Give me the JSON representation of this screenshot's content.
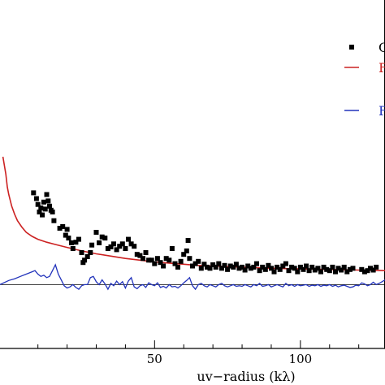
{
  "chart_data": {
    "type": "scatter",
    "xlabel": "uv−radius (kλ)",
    "x_ticks": [
      50,
      100
    ],
    "xlim": [
      -3,
      129
    ],
    "ylim": [
      -1.1,
      4.9
    ],
    "zero_line": true,
    "legend_position": "top-right",
    "legend": [
      {
        "label": "O",
        "marker": "square",
        "color": "#000000"
      },
      {
        "label": "F",
        "marker": "line",
        "color": "#cc2222"
      },
      {
        "label": "F",
        "marker": "line",
        "color": "#2233bb"
      }
    ],
    "points": [
      [
        8.5,
        1.58
      ],
      [
        9.5,
        1.48
      ],
      [
        10.0,
        1.38
      ],
      [
        10.5,
        1.25
      ],
      [
        11.0,
        1.32
      ],
      [
        11.5,
        1.2
      ],
      [
        12.0,
        1.42
      ],
      [
        12.5,
        1.3
      ],
      [
        13.0,
        1.55
      ],
      [
        13.5,
        1.44
      ],
      [
        14.0,
        1.35
      ],
      [
        14.5,
        1.28
      ],
      [
        15.0,
        1.25
      ],
      [
        15.5,
        1.1
      ],
      [
        17.5,
        0.97
      ],
      [
        18.5,
        1.0
      ],
      [
        19.5,
        0.85
      ],
      [
        20.0,
        0.95
      ],
      [
        20.5,
        0.8
      ],
      [
        21.5,
        0.72
      ],
      [
        22.0,
        0.62
      ],
      [
        23.0,
        0.73
      ],
      [
        24.0,
        0.78
      ],
      [
        25.0,
        0.55
      ],
      [
        25.5,
        0.38
      ],
      [
        26.0,
        0.42
      ],
      [
        27.0,
        0.48
      ],
      [
        28.0,
        0.55
      ],
      [
        28.5,
        0.68
      ],
      [
        30.0,
        0.9
      ],
      [
        31.0,
        0.72
      ],
      [
        32.0,
        0.82
      ],
      [
        33.0,
        0.8
      ],
      [
        34.0,
        0.62
      ],
      [
        35.0,
        0.65
      ],
      [
        36.0,
        0.7
      ],
      [
        37.0,
        0.6
      ],
      [
        38.0,
        0.66
      ],
      [
        39.0,
        0.7
      ],
      [
        40.0,
        0.62
      ],
      [
        41.0,
        0.78
      ],
      [
        42.0,
        0.7
      ],
      [
        43.0,
        0.66
      ],
      [
        44.0,
        0.52
      ],
      [
        45.0,
        0.5
      ],
      [
        46.0,
        0.45
      ],
      [
        47.0,
        0.55
      ],
      [
        48.0,
        0.42
      ],
      [
        49.0,
        0.42
      ],
      [
        50.0,
        0.36
      ],
      [
        51.0,
        0.45
      ],
      [
        52.0,
        0.38
      ],
      [
        53.0,
        0.32
      ],
      [
        54.0,
        0.45
      ],
      [
        55.0,
        0.42
      ],
      [
        56.0,
        0.62
      ],
      [
        57.0,
        0.36
      ],
      [
        58.0,
        0.3
      ],
      [
        59.0,
        0.4
      ],
      [
        60.0,
        0.52
      ],
      [
        61.0,
        0.58
      ],
      [
        61.5,
        0.76
      ],
      [
        62.0,
        0.45
      ],
      [
        63.0,
        0.32
      ],
      [
        64.0,
        0.36
      ],
      [
        65.0,
        0.4
      ],
      [
        66.0,
        0.28
      ],
      [
        67.0,
        0.35
      ],
      [
        68.0,
        0.3
      ],
      [
        69.0,
        0.28
      ],
      [
        70.0,
        0.34
      ],
      [
        71.0,
        0.3
      ],
      [
        72.0,
        0.36
      ],
      [
        73.0,
        0.28
      ],
      [
        74.0,
        0.33
      ],
      [
        75.0,
        0.26
      ],
      [
        76.0,
        0.32
      ],
      [
        77.0,
        0.3
      ],
      [
        78.0,
        0.35
      ],
      [
        79.0,
        0.28
      ],
      [
        80.0,
        0.3
      ],
      [
        81.0,
        0.25
      ],
      [
        82.0,
        0.32
      ],
      [
        83.0,
        0.28
      ],
      [
        84.0,
        0.3
      ],
      [
        85.0,
        0.36
      ],
      [
        86.0,
        0.24
      ],
      [
        87.0,
        0.3
      ],
      [
        88.0,
        0.26
      ],
      [
        89.0,
        0.33
      ],
      [
        90.0,
        0.28
      ],
      [
        91.0,
        0.22
      ],
      [
        92.0,
        0.3
      ],
      [
        93.0,
        0.26
      ],
      [
        94.0,
        0.32
      ],
      [
        95.0,
        0.36
      ],
      [
        96.0,
        0.24
      ],
      [
        97.0,
        0.3
      ],
      [
        98.0,
        0.28
      ],
      [
        99.0,
        0.22
      ],
      [
        100.0,
        0.3
      ],
      [
        101.0,
        0.26
      ],
      [
        102.0,
        0.32
      ],
      [
        103.0,
        0.24
      ],
      [
        104.0,
        0.3
      ],
      [
        105.0,
        0.25
      ],
      [
        106.0,
        0.28
      ],
      [
        107.0,
        0.22
      ],
      [
        108.0,
        0.3
      ],
      [
        109.0,
        0.26
      ],
      [
        110.0,
        0.24
      ],
      [
        111.0,
        0.3
      ],
      [
        112.0,
        0.22
      ],
      [
        113.0,
        0.28
      ],
      [
        114.0,
        0.25
      ],
      [
        115.0,
        0.3
      ],
      [
        116.0,
        0.22
      ],
      [
        117.0,
        0.26
      ],
      [
        118.0,
        0.28
      ],
      [
        121.0,
        0.26
      ],
      [
        122.0,
        0.22
      ],
      [
        123.0,
        0.24
      ],
      [
        124.0,
        0.28
      ],
      [
        125.0,
        0.25
      ],
      [
        126.0,
        0.3
      ]
    ],
    "model_curve": [
      [
        -2.0,
        2.2
      ],
      [
        -1.5,
        2.05
      ],
      [
        -1.0,
        1.9
      ],
      [
        -0.5,
        1.68
      ],
      [
        0.0,
        1.55
      ],
      [
        1.0,
        1.35
      ],
      [
        2.0,
        1.21
      ],
      [
        3.0,
        1.1
      ],
      [
        4.5,
        0.99
      ],
      [
        6.0,
        0.9
      ],
      [
        8.0,
        0.83
      ],
      [
        10.0,
        0.78
      ],
      [
        13.0,
        0.73
      ],
      [
        16.0,
        0.69
      ],
      [
        20.0,
        0.64
      ],
      [
        25.0,
        0.58
      ],
      [
        30.0,
        0.53
      ],
      [
        35.0,
        0.49
      ],
      [
        40.0,
        0.45
      ],
      [
        45.0,
        0.42
      ],
      [
        50.0,
        0.39
      ],
      [
        55.0,
        0.37
      ],
      [
        60.0,
        0.35
      ],
      [
        65.0,
        0.33
      ],
      [
        70.0,
        0.32
      ],
      [
        75.0,
        0.31
      ],
      [
        80.0,
        0.3
      ],
      [
        85.0,
        0.29
      ],
      [
        90.0,
        0.28
      ],
      [
        95.0,
        0.275
      ],
      [
        100.0,
        0.27
      ],
      [
        105.0,
        0.265
      ],
      [
        110.0,
        0.26
      ],
      [
        115.0,
        0.255
      ],
      [
        120.0,
        0.25
      ],
      [
        125.0,
        0.245
      ],
      [
        129.0,
        0.24
      ]
    ],
    "residuals": [
      [
        -3.0,
        0.0
      ],
      [
        0.0,
        0.07
      ],
      [
        2.0,
        0.1
      ],
      [
        4.0,
        0.14
      ],
      [
        6.0,
        0.18
      ],
      [
        8.0,
        0.22
      ],
      [
        9.0,
        0.24
      ],
      [
        10.0,
        0.18
      ],
      [
        11.0,
        0.14
      ],
      [
        12.0,
        0.16
      ],
      [
        13.0,
        0.12
      ],
      [
        14.0,
        0.14
      ],
      [
        15.0,
        0.24
      ],
      [
        16.0,
        0.34
      ],
      [
        17.0,
        0.18
      ],
      [
        18.0,
        0.08
      ],
      [
        19.0,
        -0.02
      ],
      [
        20.0,
        -0.06
      ],
      [
        21.0,
        -0.04
      ],
      [
        22.0,
        0.0
      ],
      [
        23.0,
        -0.05
      ],
      [
        24.0,
        -0.08
      ],
      [
        25.0,
        -0.02
      ],
      [
        26.0,
        0.0
      ],
      [
        27.0,
        0.0
      ],
      [
        28.0,
        0.12
      ],
      [
        29.0,
        0.14
      ],
      [
        30.0,
        0.05
      ],
      [
        31.0,
        0.0
      ],
      [
        32.0,
        0.08
      ],
      [
        33.0,
        0.01
      ],
      [
        34.0,
        -0.08
      ],
      [
        35.0,
        0.02
      ],
      [
        36.0,
        -0.02
      ],
      [
        37.0,
        0.06
      ],
      [
        38.0,
        0.0
      ],
      [
        39.0,
        0.05
      ],
      [
        40.0,
        -0.06
      ],
      [
        41.0,
        0.06
      ],
      [
        42.0,
        0.12
      ],
      [
        43.0,
        -0.04
      ],
      [
        44.0,
        -0.07
      ],
      [
        45.0,
        -0.02
      ],
      [
        46.0,
        0.0
      ],
      [
        47.0,
        -0.05
      ],
      [
        48.0,
        0.03
      ],
      [
        49.0,
        0.0
      ],
      [
        50.0,
        -0.02
      ],
      [
        51.0,
        0.03
      ],
      [
        52.0,
        -0.05
      ],
      [
        53.0,
        -0.03
      ],
      [
        54.0,
        -0.06
      ],
      [
        55.0,
        0.0
      ],
      [
        56.0,
        -0.04
      ],
      [
        57.0,
        -0.03
      ],
      [
        58.0,
        -0.06
      ],
      [
        59.0,
        -0.02
      ],
      [
        60.0,
        0.03
      ],
      [
        61.0,
        0.07
      ],
      [
        62.0,
        0.12
      ],
      [
        63.0,
        -0.02
      ],
      [
        64.0,
        -0.08
      ],
      [
        65.0,
        0.0
      ],
      [
        66.0,
        0.02
      ],
      [
        67.0,
        -0.02
      ],
      [
        68.0,
        -0.04
      ],
      [
        69.0,
        0.0
      ],
      [
        70.0,
        -0.02
      ],
      [
        71.0,
        -0.04
      ],
      [
        72.0,
        0.0
      ],
      [
        73.0,
        0.02
      ],
      [
        74.0,
        -0.02
      ],
      [
        75.0,
        -0.04
      ],
      [
        76.0,
        -0.02
      ],
      [
        77.0,
        0.0
      ],
      [
        78.0,
        -0.03
      ],
      [
        79.0,
        -0.02
      ],
      [
        80.0,
        -0.03
      ],
      [
        81.0,
        0.0
      ],
      [
        82.0,
        -0.02
      ],
      [
        83.0,
        -0.04
      ],
      [
        84.0,
        0.0
      ],
      [
        85.0,
        -0.02
      ],
      [
        86.0,
        0.02
      ],
      [
        87.0,
        -0.03
      ],
      [
        88.0,
        -0.02
      ],
      [
        89.0,
        0.0
      ],
      [
        90.0,
        -0.04
      ],
      [
        91.0,
        -0.02
      ],
      [
        92.0,
        0.0
      ],
      [
        93.0,
        -0.02
      ],
      [
        94.0,
        -0.04
      ],
      [
        95.0,
        0.02
      ],
      [
        96.0,
        -0.02
      ],
      [
        97.0,
        0.0
      ],
      [
        98.0,
        -0.03
      ],
      [
        99.0,
        0.0
      ],
      [
        100.0,
        -0.02
      ],
      [
        101.0,
        -0.01
      ],
      [
        102.0,
        0.0
      ],
      [
        103.0,
        -0.03
      ],
      [
        104.0,
        -0.01
      ],
      [
        105.0,
        -0.02
      ],
      [
        106.0,
        0.0
      ],
      [
        107.0,
        -0.03
      ],
      [
        108.0,
        -0.01
      ],
      [
        109.0,
        -0.02
      ],
      [
        110.0,
        0.0
      ],
      [
        111.0,
        -0.03
      ],
      [
        112.0,
        -0.01
      ],
      [
        113.0,
        -0.04
      ],
      [
        114.0,
        -0.02
      ],
      [
        115.0,
        -0.01
      ],
      [
        116.0,
        -0.03
      ],
      [
        117.0,
        -0.05
      ],
      [
        118.0,
        -0.04
      ],
      [
        119.0,
        -0.01
      ],
      [
        120.0,
        -0.02
      ],
      [
        121.0,
        0.03
      ],
      [
        122.0,
        0.01
      ],
      [
        123.0,
        -0.02
      ],
      [
        124.0,
        0.0
      ],
      [
        125.0,
        0.04
      ],
      [
        126.0,
        0.0
      ],
      [
        127.0,
        0.02
      ],
      [
        128.0,
        0.05
      ],
      [
        129.0,
        0.08
      ]
    ]
  }
}
